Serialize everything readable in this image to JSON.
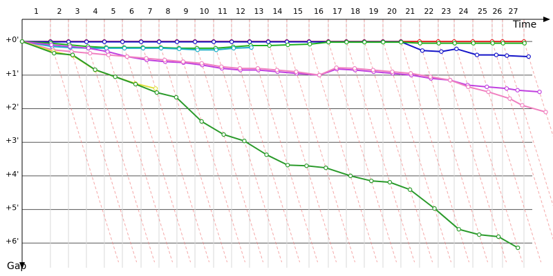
{
  "chart_data": {
    "type": "line",
    "x_label": "Time",
    "y_label": "Gap",
    "xlim": [
      0,
      51.2
    ],
    "ylim": [
      -0.66,
      6.57
    ],
    "grid": true,
    "lap_line_color": "#f08080",
    "x": [
      0,
      2.73,
      4.47,
      6.2,
      7.93,
      9.67,
      11.47,
      13.2,
      14.93,
      16.67,
      18.47,
      20.2,
      21.93,
      23.73,
      25.53,
      27.67,
      29.53,
      31.27,
      33,
      34.8,
      36.53,
      38.33,
      40.13,
      41.67,
      43.47,
      45.33,
      46.33,
      48.4
    ],
    "xticks": [
      {
        "value": 2.73,
        "label": "1"
      },
      {
        "value": 4.47,
        "label": "2"
      },
      {
        "value": 6.2,
        "label": "3"
      },
      {
        "value": 7.93,
        "label": "4"
      },
      {
        "value": 9.67,
        "label": "5"
      },
      {
        "value": 11.47,
        "label": "6"
      },
      {
        "value": 13.2,
        "label": "7"
      },
      {
        "value": 14.93,
        "label": "8"
      },
      {
        "value": 16.67,
        "label": "9"
      },
      {
        "value": 18.47,
        "label": "10"
      },
      {
        "value": 20.2,
        "label": "11"
      },
      {
        "value": 21.93,
        "label": "12"
      },
      {
        "value": 23.73,
        "label": "13"
      },
      {
        "value": 25.53,
        "label": "14"
      },
      {
        "value": 27.67,
        "label": "15"
      },
      {
        "value": 29.53,
        "label": "16"
      },
      {
        "value": 31.27,
        "label": "17"
      },
      {
        "value": 33,
        "label": "18"
      },
      {
        "value": 34.8,
        "label": "19"
      },
      {
        "value": 36.53,
        "label": "20"
      },
      {
        "value": 38.33,
        "label": "21"
      },
      {
        "value": 40.13,
        "label": "22"
      },
      {
        "value": 41.67,
        "label": "23"
      },
      {
        "value": 43.47,
        "label": "24"
      },
      {
        "value": 45.33,
        "label": "25"
      },
      {
        "value": 46.33,
        "label": "26"
      },
      {
        "value": 48.4,
        "label": "27"
      }
    ],
    "yticks": [
      {
        "value": 0,
        "label": "+0'"
      },
      {
        "value": 1,
        "label": "+1'"
      },
      {
        "value": 2,
        "label": "+2'"
      },
      {
        "value": 3,
        "label": "+3'"
      },
      {
        "value": 4,
        "label": "+4'"
      },
      {
        "value": 5,
        "label": "+5'"
      },
      {
        "value": 6,
        "label": "+6'"
      }
    ],
    "series": [
      {
        "color": "#e02020",
        "values": [
          0,
          0,
          0,
          0,
          0,
          0,
          0,
          0,
          0,
          0,
          0,
          0,
          0,
          0,
          0,
          0,
          0,
          0,
          0,
          0,
          0,
          0,
          0,
          0,
          0,
          0,
          0,
          0
        ]
      },
      {
        "color": "#1414c8",
        "values": [
          0,
          0.01,
          0.01,
          0.01,
          0.01,
          0.01,
          0.01,
          0.01,
          0.01,
          0.01,
          0.01,
          0.01,
          0.01,
          0.01,
          0.01,
          0.01,
          0.01,
          0.01,
          0.01,
          0.01,
          0.01,
          0.27,
          0.3,
          0.22,
          0.4,
          0.4,
          0.42,
          0.45
        ]
      },
      {
        "color": "#20b020",
        "values": [
          0,
          0.05,
          0.1,
          0.15,
          0.18,
          0.18,
          0.18,
          0.18,
          0.2,
          0.2,
          0.2,
          0.16,
          0.12,
          0.12,
          0.1,
          0.08,
          0.02,
          0.02,
          0.02,
          0.02,
          0.02,
          0.05,
          0.05,
          0.05,
          0.05,
          0.05,
          0.05,
          0.05
        ]
      },
      {
        "color": "#20b0c8",
        "values": [
          0,
          0.15,
          0.18,
          0.2,
          0.2,
          0.2,
          0.2,
          0.2,
          0.22,
          0.25,
          0.25,
          0.2,
          0.18,
          null,
          null,
          null,
          null,
          null,
          null,
          null,
          null,
          null,
          null,
          null,
          null,
          null,
          null,
          null
        ]
      },
      {
        "color": "#c040e0",
        "values": [
          0,
          0.1,
          0.15,
          0.2,
          0.3,
          0.45,
          0.55,
          0.6,
          0.63,
          0.7,
          0.8,
          0.85,
          0.85,
          0.9,
          0.95,
          1.0,
          0.82,
          0.85,
          0.9,
          0.95,
          1.0,
          1.1,
          1.15,
          1.3,
          1.35,
          1.4,
          1.45,
          1.5
        ]
      },
      {
        "color": "#f080c0",
        "values": [
          0,
          0.25,
          0.3,
          0.35,
          0.4,
          0.45,
          0.5,
          0.55,
          0.6,
          0.65,
          0.75,
          0.8,
          0.8,
          0.85,
          0.9,
          1.0,
          0.78,
          0.8,
          0.85,
          0.9,
          0.95,
          1.05,
          1.15,
          1.35,
          1.5,
          1.7,
          1.9,
          2.1
        ]
      },
      {
        "color": "#e0e040",
        "values": [
          0,
          0.3,
          0.42,
          0.85,
          1.05,
          1.25,
          1.4,
          null,
          null,
          null,
          null,
          null,
          null,
          null,
          null,
          null,
          null,
          null,
          null,
          null,
          null,
          null,
          null,
          null,
          null,
          null,
          null,
          null
        ]
      },
      {
        "color": "#2a9a2a",
        "values": [
          0,
          0.35,
          0.4,
          0.84,
          1.05,
          1.27,
          1.52,
          1.66,
          2.38,
          2.77,
          2.96,
          3.37,
          3.68,
          3.7,
          3.76,
          4.0,
          4.15,
          4.19,
          4.41,
          4.97,
          5.59,
          5.75,
          5.81,
          6.14,
          null,
          null,
          null,
          null
        ]
      }
    ]
  }
}
